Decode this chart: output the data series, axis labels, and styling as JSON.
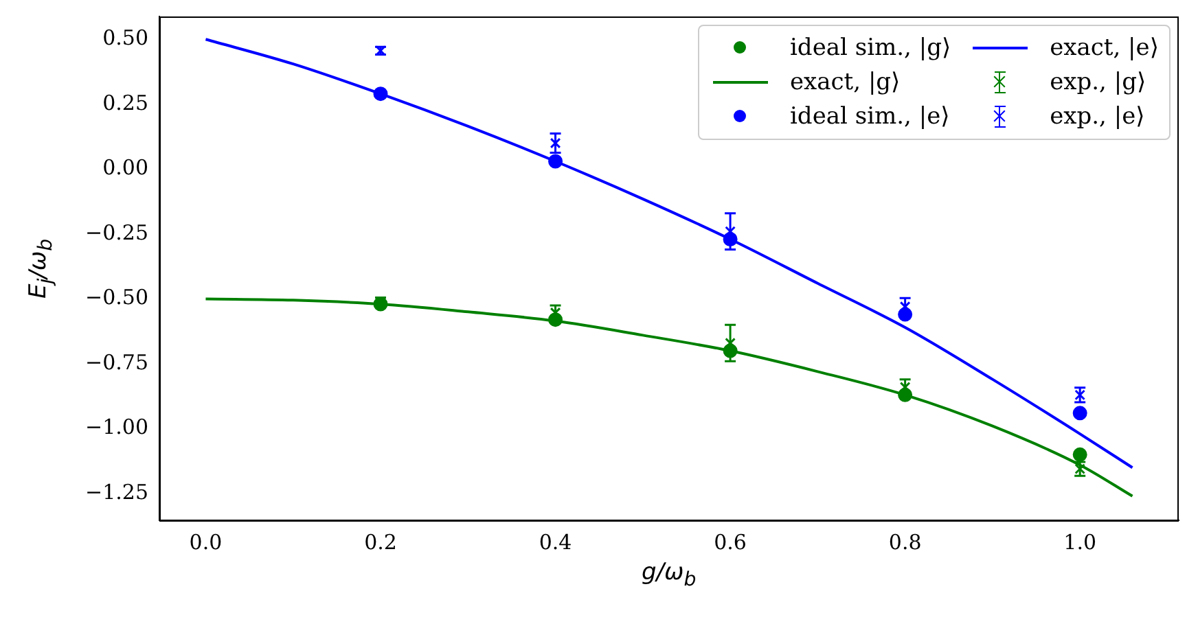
{
  "chart_data": {
    "type": "scatter",
    "xlabel": "g/ω$_{b}$",
    "ylabel": "E$_{j}$/ω$_{b}$",
    "xlim": [
      -0.053,
      1.113
    ],
    "ylim": [
      -1.353,
      0.588
    ],
    "xticks": [
      {
        "value": 0,
        "label": "0.0"
      },
      {
        "value": 0.2,
        "label": "0.2"
      },
      {
        "value": 0.4,
        "label": "0.4"
      },
      {
        "value": 0.6,
        "label": "0.6"
      },
      {
        "value": 0.8,
        "label": "0.8"
      },
      {
        "value": 1,
        "label": "1.0"
      }
    ],
    "yticks": [
      {
        "value": -1.25,
        "label": "−1.25"
      },
      {
        "value": -1,
        "label": "−1.00"
      },
      {
        "value": -0.75,
        "label": "−0.75"
      },
      {
        "value": -0.5,
        "label": "−0.50"
      },
      {
        "value": -0.25,
        "label": "−0.25"
      },
      {
        "value": 0,
        "label": "0.00"
      },
      {
        "value": 0.25,
        "label": "0.25"
      },
      {
        "value": 0.5,
        "label": "0.50"
      }
    ],
    "grid": false,
    "legend": "top right",
    "series": [
      {
        "name": "ideal sim., |g⟩",
        "marker": "circle",
        "color": "#008000",
        "x": [
          0.2,
          0.4,
          0.6,
          0.8,
          1.0
        ],
        "values": [
          -0.52,
          -0.58,
          -0.7,
          -0.87,
          -1.1
        ]
      },
      {
        "name": "exact, |g⟩",
        "type": "line",
        "marker": "none",
        "color": "#008000",
        "x": [
          0,
          0.1,
          0.2,
          0.3,
          0.4,
          0.5,
          0.6,
          0.7,
          0.8,
          0.9,
          1.0,
          1.06
        ],
        "values": [
          -0.5,
          -0.505,
          -0.52,
          -0.55,
          -0.585,
          -0.64,
          -0.7,
          -0.78,
          -0.87,
          -0.99,
          -1.14,
          -1.26
        ]
      },
      {
        "name": "ideal sim., |e⟩",
        "marker": "circle",
        "color": "#0000ff",
        "x": [
          0.2,
          0.4,
          0.6,
          0.8,
          1.0
        ],
        "values": [
          0.29,
          0.03,
          -0.27,
          -0.56,
          -0.94
        ]
      },
      {
        "name": "exact, |e⟩",
        "type": "line",
        "marker": "none",
        "color": "#0000ff",
        "x": [
          0,
          0.1,
          0.2,
          0.3,
          0.4,
          0.5,
          0.6,
          0.7,
          0.8,
          0.9,
          1.0,
          1.06
        ],
        "values": [
          0.5,
          0.405,
          0.29,
          0.165,
          0.03,
          -0.115,
          -0.27,
          -0.44,
          -0.61,
          -0.81,
          -1.02,
          -1.15
        ]
      },
      {
        "name": "exp., |g⟩",
        "marker": "cross",
        "color": "#008000",
        "x": [
          0.2,
          0.4,
          0.6,
          0.8,
          1.0
        ],
        "values": [
          -0.51,
          -0.553,
          -0.67,
          -0.84,
          -1.155
        ],
        "errors": [
          0.015,
          0.028,
          0.07,
          0.03,
          0.027
        ]
      },
      {
        "name": "exp., |e⟩",
        "marker": "cross",
        "color": "#0000ff",
        "x": [
          0.2,
          0.4,
          0.6,
          0.8,
          1.0
        ],
        "values": [
          0.456,
          0.1,
          -0.24,
          -0.53,
          -0.87
        ],
        "errors": [
          0.015,
          0.037,
          0.07,
          0.033,
          0.028
        ]
      }
    ]
  }
}
